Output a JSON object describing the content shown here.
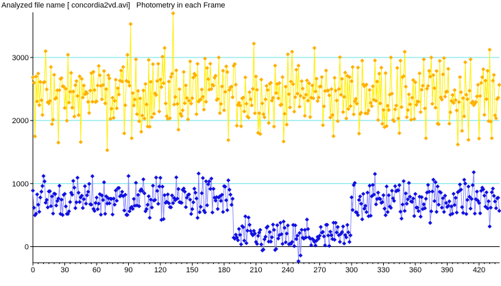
{
  "title": "Analyzed file name [ concordia2vd.avi]   Photometry in each Frame",
  "colors": {
    "grid": "#66e0e8",
    "series_bright_line": "#ffee00",
    "series_bright_marker": "#ffb000",
    "series_faint_line": "#8c8cff",
    "series_faint_marker": "#1010e0",
    "axis": "#000000"
  },
  "chart_data": {
    "type": "line",
    "title": "",
    "xlabel": "",
    "ylabel": "",
    "xlim": [
      0,
      440
    ],
    "ylim": [
      -250,
      3700
    ],
    "grid": "horizontal",
    "gridlines": [
      1000,
      2000,
      3000
    ],
    "x_ticks": [
      0,
      30,
      60,
      90,
      120,
      150,
      180,
      210,
      240,
      270,
      300,
      330,
      360,
      390,
      420
    ],
    "y_ticks": [
      0,
      1000,
      2000,
      3000
    ],
    "x_tick_labels": [
      "0",
      "30",
      "60",
      "90",
      "120",
      "150",
      "180",
      "210",
      "240",
      "270",
      "300",
      "330",
      "360",
      "390",
      "420"
    ],
    "y_tick_labels": [
      "0",
      "1000",
      "2000",
      "3000"
    ],
    "series": [
      {
        "x_start": 0,
        "x_step": 1,
        "x_count": 440,
        "mean": 2400,
        "noise": 280,
        "spikes": [
          {
            "x": 2,
            "y": 1750
          },
          {
            "x": 12,
            "y": 3100
          },
          {
            "x": 17,
            "y": 2850
          },
          {
            "x": 24,
            "y": 1650
          },
          {
            "x": 44,
            "y": 2700
          },
          {
            "x": 55,
            "y": 2750
          },
          {
            "x": 64,
            "y": 2550
          },
          {
            "x": 70,
            "y": 1530
          },
          {
            "x": 85,
            "y": 2850
          },
          {
            "x": 92,
            "y": 3530
          },
          {
            "x": 93,
            "y": 1720
          },
          {
            "x": 109,
            "y": 2960
          },
          {
            "x": 118,
            "y": 2900
          },
          {
            "x": 124,
            "y": 3150
          },
          {
            "x": 132,
            "y": 3700
          },
          {
            "x": 155,
            "y": 2900
          },
          {
            "x": 175,
            "y": 3000
          },
          {
            "x": 208,
            "y": 3220
          },
          {
            "x": 240,
            "y": 3050
          },
          {
            "x": 265,
            "y": 3150
          },
          {
            "x": 310,
            "y": 2950
          },
          {
            "x": 337,
            "y": 3000
          },
          {
            "x": 345,
            "y": 1800
          },
          {
            "x": 370,
            "y": 1720
          },
          {
            "x": 375,
            "y": 3000
          },
          {
            "x": 400,
            "y": 1620
          },
          {
            "x": 412,
            "y": 2970
          },
          {
            "x": 432,
            "y": 1720
          }
        ]
      },
      {
        "x_start": 0,
        "x_step": 1,
        "x_count": 440,
        "segments": [
          {
            "from": 0,
            "to": 188,
            "mean": 750,
            "noise": 160
          },
          {
            "from": 189,
            "to": 299,
            "mean": 140,
            "noise": 130
          },
          {
            "from": 300,
            "to": 440,
            "mean": 750,
            "noise": 160
          }
        ],
        "spikes": [
          {
            "x": 10,
            "y": 1120
          },
          {
            "x": 90,
            "y": 1120
          },
          {
            "x": 156,
            "y": 1160
          },
          {
            "x": 168,
            "y": 1080
          },
          {
            "x": 200,
            "y": 480
          },
          {
            "x": 250,
            "y": -230
          },
          {
            "x": 252,
            "y": -140
          },
          {
            "x": 258,
            "y": 430
          },
          {
            "x": 283,
            "y": 380
          },
          {
            "x": 303,
            "y": 1010
          },
          {
            "x": 415,
            "y": 1180
          },
          {
            "x": 406,
            "y": 1060
          },
          {
            "x": 430,
            "y": 320
          }
        ]
      }
    ]
  }
}
